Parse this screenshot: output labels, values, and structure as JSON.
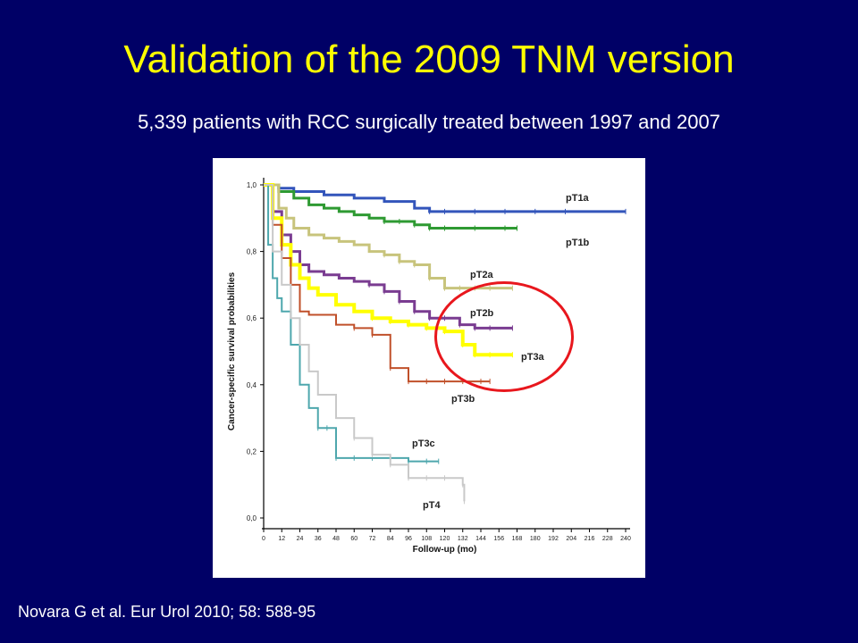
{
  "slide": {
    "title": "Validation of the 2009 TNM version",
    "subtitle": "5,339 patients with RCC surgically treated between 1997 and 2007",
    "citation": "Novara G et al. Eur Urol 2010; 58: 588-95",
    "highlight_color": "#e8171d",
    "background": "#000066",
    "title_color": "#ffff00"
  },
  "chart_data": {
    "type": "line",
    "title": "",
    "xlabel": "Follow-up (mo)",
    "ylabel": "Cancer-specific survival probabilities",
    "xlim": [
      0,
      240
    ],
    "ylim": [
      0,
      1
    ],
    "x_ticks": [
      "0",
      "12",
      "24",
      "36",
      "48",
      "60",
      "72",
      "84",
      "96",
      "108",
      "120",
      "132",
      "144",
      "156",
      "168",
      "180",
      "192",
      "204",
      "216",
      "228",
      "240"
    ],
    "y_ticks": [
      "0,0",
      "0,2",
      "0,4",
      "0,6",
      "0,8",
      "1,0"
    ],
    "grid": false,
    "series": [
      {
        "name": "pT1a",
        "color": "#3355bb",
        "width": 3,
        "x": [
          0,
          10,
          20,
          40,
          60,
          80,
          100,
          110,
          120,
          140,
          160,
          180,
          200,
          240
        ],
        "y": [
          1.0,
          0.99,
          0.98,
          0.97,
          0.96,
          0.95,
          0.93,
          0.92,
          0.92,
          0.92,
          0.92,
          0.92,
          0.92,
          0.92
        ]
      },
      {
        "name": "pT1b",
        "color": "#2e9a32",
        "width": 3,
        "x": [
          0,
          10,
          20,
          30,
          40,
          50,
          60,
          70,
          80,
          90,
          100,
          110,
          120,
          140,
          160,
          168
        ],
        "y": [
          1.0,
          0.98,
          0.96,
          0.94,
          0.93,
          0.92,
          0.91,
          0.9,
          0.89,
          0.89,
          0.88,
          0.87,
          0.87,
          0.87,
          0.87,
          0.87
        ]
      },
      {
        "name": "pT2a",
        "color": "#c8c47c",
        "width": 3,
        "x": [
          0,
          10,
          15,
          20,
          30,
          40,
          50,
          60,
          70,
          80,
          90,
          100,
          110,
          120,
          130,
          140,
          150,
          165
        ],
        "y": [
          1.0,
          0.93,
          0.9,
          0.87,
          0.85,
          0.84,
          0.83,
          0.82,
          0.8,
          0.79,
          0.77,
          0.76,
          0.72,
          0.69,
          0.69,
          0.69,
          0.69,
          0.69
        ]
      },
      {
        "name": "pT2b",
        "color": "#7a3c91",
        "width": 3,
        "x": [
          0,
          6,
          12,
          18,
          24,
          30,
          40,
          50,
          60,
          70,
          80,
          90,
          100,
          110,
          120,
          130,
          140,
          150,
          165
        ],
        "y": [
          1.0,
          0.92,
          0.85,
          0.8,
          0.76,
          0.74,
          0.73,
          0.72,
          0.71,
          0.7,
          0.68,
          0.65,
          0.62,
          0.6,
          0.6,
          0.58,
          0.57,
          0.57,
          0.57
        ]
      },
      {
        "name": "pT3a",
        "color": "#ffff00",
        "width": 4,
        "x": [
          0,
          6,
          12,
          18,
          24,
          30,
          36,
          48,
          60,
          72,
          84,
          96,
          108,
          120,
          132,
          140,
          150,
          165
        ],
        "y": [
          1.0,
          0.9,
          0.82,
          0.76,
          0.72,
          0.69,
          0.67,
          0.64,
          0.62,
          0.6,
          0.59,
          0.58,
          0.57,
          0.56,
          0.52,
          0.49,
          0.49,
          0.49
        ]
      },
      {
        "name": "pT3b",
        "color": "#c0502a",
        "width": 2,
        "x": [
          0,
          6,
          12,
          18,
          24,
          30,
          36,
          48,
          60,
          72,
          84,
          96,
          108,
          120,
          132,
          144,
          150
        ],
        "y": [
          1.0,
          0.88,
          0.78,
          0.7,
          0.62,
          0.61,
          0.61,
          0.58,
          0.57,
          0.55,
          0.45,
          0.41,
          0.41,
          0.41,
          0.41,
          0.41,
          0.41
        ]
      },
      {
        "name": "pT3c",
        "color": "#4ea7ad",
        "width": 2,
        "x": [
          0,
          3,
          6,
          9,
          12,
          18,
          24,
          30,
          36,
          42,
          48,
          60,
          72,
          84,
          96,
          108,
          116
        ],
        "y": [
          1.0,
          0.82,
          0.72,
          0.66,
          0.62,
          0.52,
          0.4,
          0.33,
          0.27,
          0.27,
          0.18,
          0.18,
          0.18,
          0.18,
          0.17,
          0.17,
          0.17
        ]
      },
      {
        "name": "pT4",
        "color": "#c9c9c9",
        "width": 2,
        "x": [
          0,
          6,
          12,
          18,
          24,
          30,
          36,
          48,
          60,
          72,
          84,
          96,
          108,
          120,
          132,
          133
        ],
        "y": [
          1.0,
          0.8,
          0.7,
          0.6,
          0.52,
          0.44,
          0.37,
          0.3,
          0.24,
          0.19,
          0.16,
          0.12,
          0.12,
          0.12,
          0.1,
          0.05
        ]
      }
    ],
    "annotation": "red ellipse around pT2b and pT3a"
  }
}
